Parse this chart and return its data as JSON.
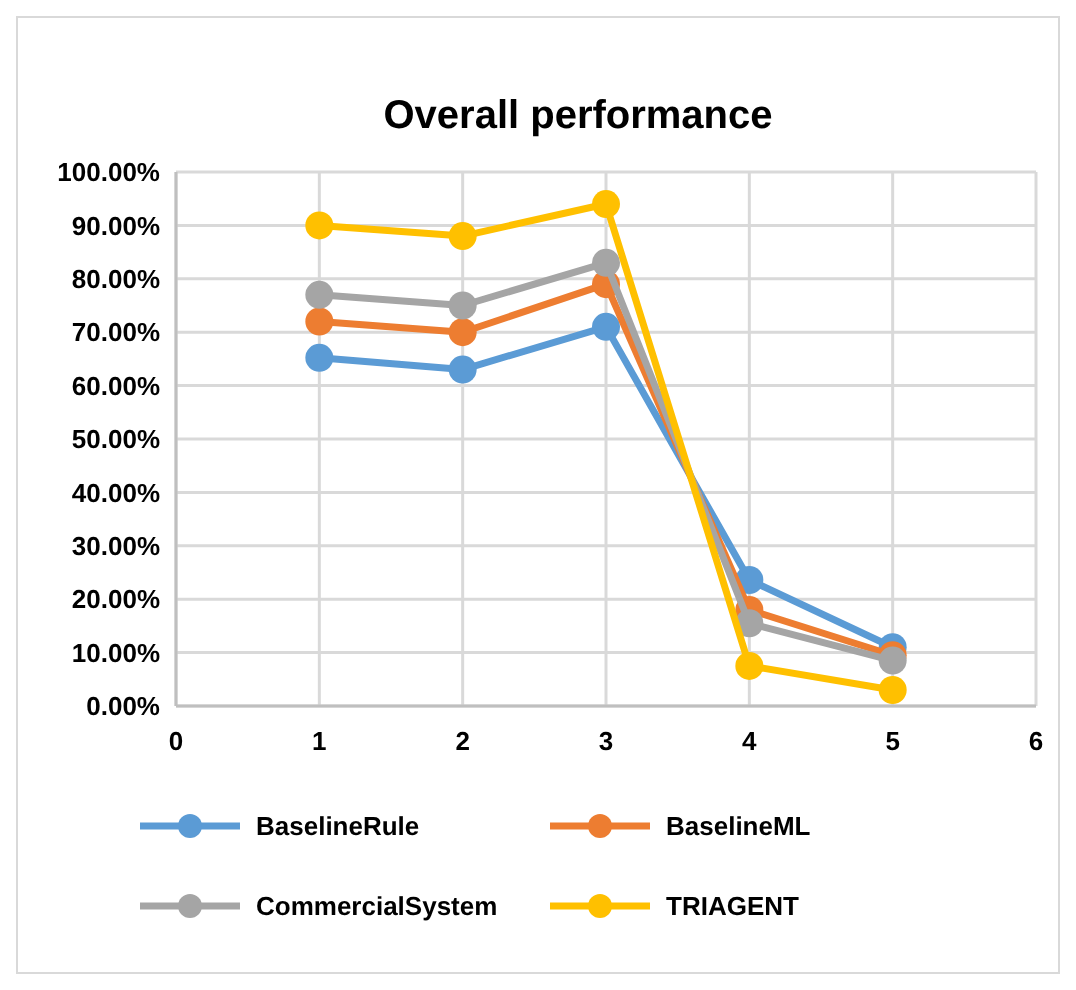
{
  "chart_data": {
    "type": "line",
    "title": "Overall performance",
    "x": [
      1,
      2,
      3,
      4,
      5
    ],
    "series": [
      {
        "name": "BaselineRule",
        "color": "#5b9bd5",
        "values": [
          65.2,
          63,
          71,
          23.6,
          11
        ]
      },
      {
        "name": "BaselineML",
        "color": "#ed7d31",
        "values": [
          72,
          70,
          79,
          18,
          9.5
        ]
      },
      {
        "name": "CommercialSystem",
        "color": "#a5a5a5",
        "values": [
          77,
          75,
          83,
          15.5,
          8.5
        ]
      },
      {
        "name": "TRIAGENT",
        "color": "#ffc000",
        "values": [
          90,
          88,
          94,
          7.5,
          3
        ]
      }
    ],
    "xlim": [
      0,
      6
    ],
    "xticks": [
      0,
      1,
      2,
      3,
      4,
      5,
      6
    ],
    "ylim": [
      0,
      100
    ],
    "yticks": [
      {
        "value": 0,
        "label": "0.00%"
      },
      {
        "value": 10,
        "label": "10.00%"
      },
      {
        "value": 20,
        "label": "20.00%"
      },
      {
        "value": 30,
        "label": "30.00%"
      },
      {
        "value": 40,
        "label": "40.00%"
      },
      {
        "value": 50,
        "label": "50.00%"
      },
      {
        "value": 60,
        "label": "60.00%"
      },
      {
        "value": 70,
        "label": "70.00%"
      },
      {
        "value": 80,
        "label": "80.00%"
      },
      {
        "value": 90,
        "label": "90.00%"
      },
      {
        "value": 100,
        "label": "100.00%"
      }
    ],
    "grid": true,
    "legend": "bottom",
    "marker": "circle",
    "line_style": "solid"
  }
}
